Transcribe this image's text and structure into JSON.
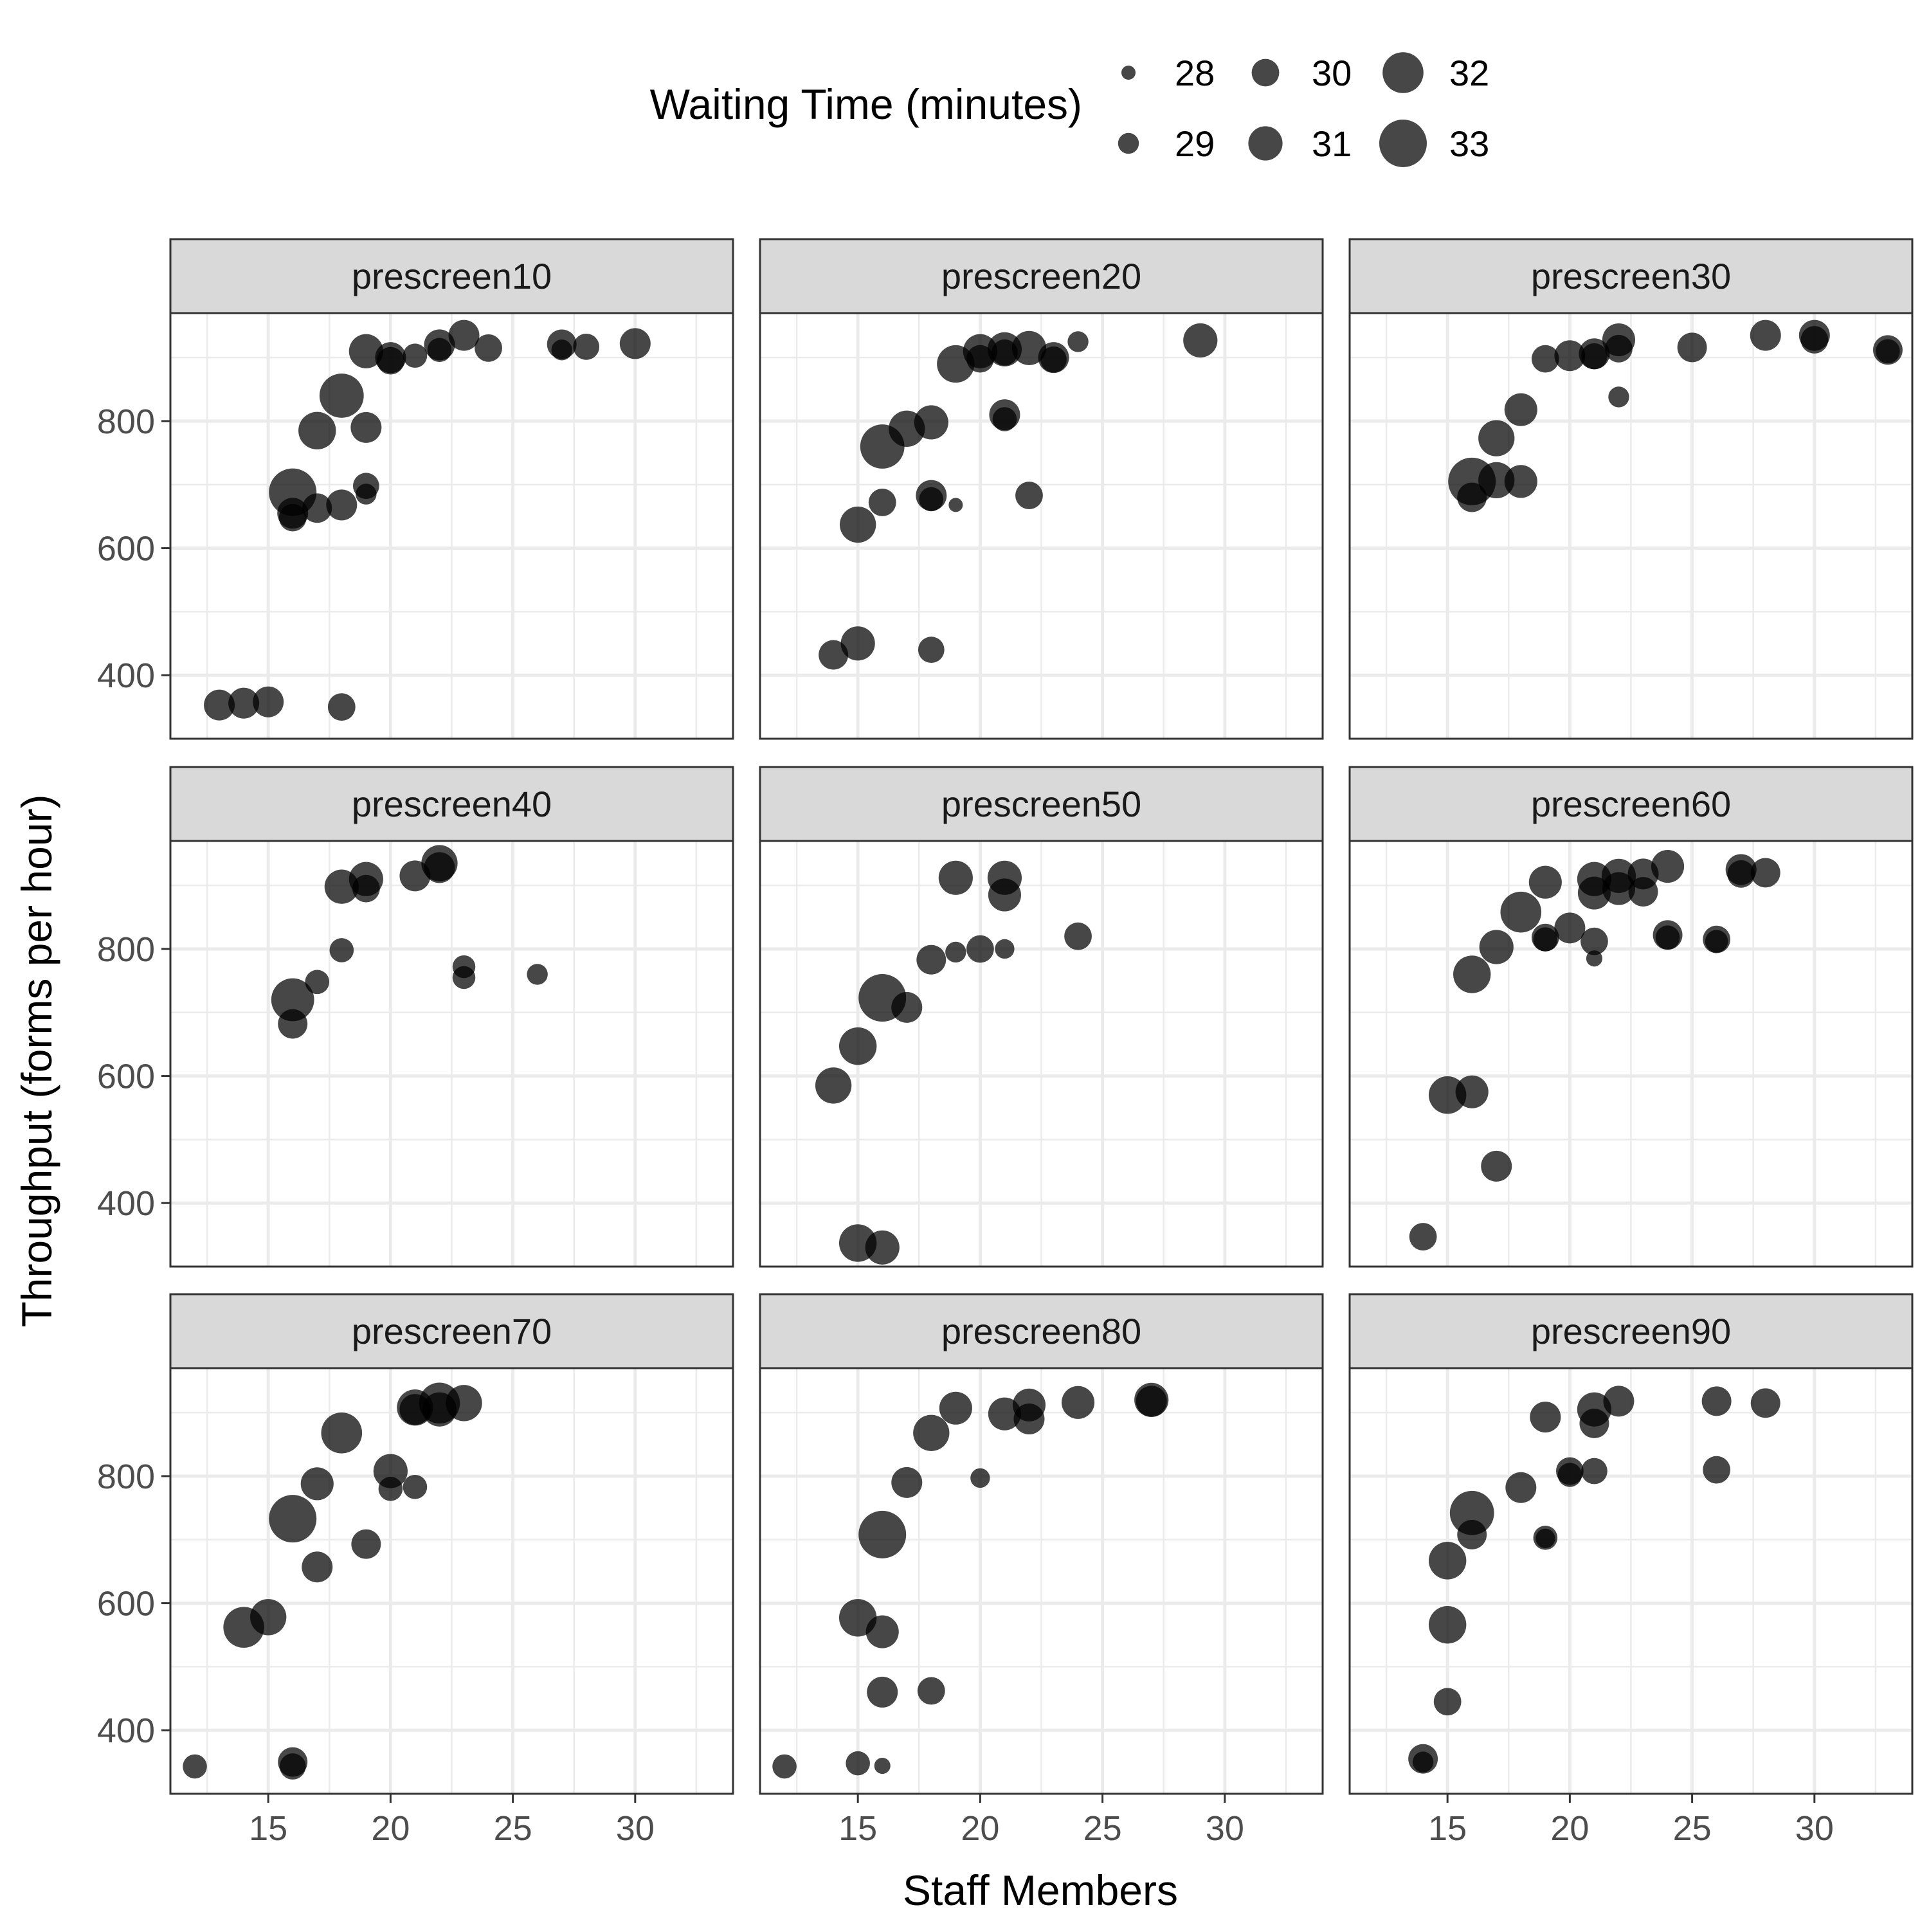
{
  "chart_data": {
    "type": "scatter",
    "x_label": "Staff Members",
    "y_label": "Throughput (forms per hour)",
    "xlim": [
      11,
      34
    ],
    "ylim": [
      300,
      970
    ],
    "x_ticks": [
      15,
      20,
      25,
      30
    ],
    "y_ticks": [
      400,
      600,
      800
    ],
    "grid": true,
    "size_legend": {
      "title": "Waiting Time (minutes)",
      "position": "top",
      "entries": [
        {
          "value": 28,
          "label": "28"
        },
        {
          "value": 29,
          "label": "29"
        },
        {
          "value": 30,
          "label": "30"
        },
        {
          "value": 31,
          "label": "31"
        },
        {
          "value": 32,
          "label": "32"
        },
        {
          "value": 33,
          "label": "33"
        }
      ]
    },
    "point_color": "#000000",
    "panel_strip_color": "#d9d9d9",
    "panels": [
      {
        "title": "prescreen10",
        "points": [
          {
            "x": 13,
            "y": 353,
            "w": 30.5
          },
          {
            "x": 14,
            "y": 356,
            "w": 30.5
          },
          {
            "x": 15,
            "y": 358,
            "w": 30.5
          },
          {
            "x": 18,
            "y": 350,
            "w": 30
          },
          {
            "x": 16,
            "y": 688,
            "w": 33
          },
          {
            "x": 16,
            "y": 655,
            "w": 30.5
          },
          {
            "x": 16,
            "y": 648,
            "w": 30
          },
          {
            "x": 17,
            "y": 663,
            "w": 30.3
          },
          {
            "x": 18,
            "y": 668,
            "w": 30.5
          },
          {
            "x": 17,
            "y": 785,
            "w": 31.5
          },
          {
            "x": 18,
            "y": 840,
            "w": 32.5
          },
          {
            "x": 19,
            "y": 790,
            "w": 30.5
          },
          {
            "x": 19,
            "y": 698,
            "w": 29.8
          },
          {
            "x": 19,
            "y": 685,
            "w": 29
          },
          {
            "x": 19,
            "y": 910,
            "w": 31
          },
          {
            "x": 20,
            "y": 900,
            "w": 30.5
          },
          {
            "x": 20,
            "y": 895,
            "w": 30
          },
          {
            "x": 21,
            "y": 903,
            "w": 29.5
          },
          {
            "x": 22,
            "y": 920,
            "w": 30.5
          },
          {
            "x": 22,
            "y": 912,
            "w": 29.5
          },
          {
            "x": 23,
            "y": 935,
            "w": 30.5
          },
          {
            "x": 24,
            "y": 915,
            "w": 30
          },
          {
            "x": 27,
            "y": 921,
            "w": 30.3
          },
          {
            "x": 27,
            "y": 912,
            "w": 29
          },
          {
            "x": 28,
            "y": 917,
            "w": 29.8
          },
          {
            "x": 30,
            "y": 922,
            "w": 30.5
          }
        ]
      },
      {
        "title": "prescreen20",
        "points": [
          {
            "x": 14,
            "y": 432,
            "w": 30.3
          },
          {
            "x": 15,
            "y": 450,
            "w": 31
          },
          {
            "x": 18,
            "y": 440,
            "w": 29.8
          },
          {
            "x": 15,
            "y": 637,
            "w": 31.3
          },
          {
            "x": 16,
            "y": 672,
            "w": 30
          },
          {
            "x": 16,
            "y": 760,
            "w": 32.5
          },
          {
            "x": 17,
            "y": 788,
            "w": 31.3
          },
          {
            "x": 18,
            "y": 798,
            "w": 31
          },
          {
            "x": 18,
            "y": 683,
            "w": 30.5
          },
          {
            "x": 18,
            "y": 677,
            "w": 29.5
          },
          {
            "x": 19,
            "y": 668,
            "w": 28
          },
          {
            "x": 19,
            "y": 890,
            "w": 31.5
          },
          {
            "x": 20,
            "y": 910,
            "w": 31
          },
          {
            "x": 20,
            "y": 898,
            "w": 30
          },
          {
            "x": 21,
            "y": 913,
            "w": 31
          },
          {
            "x": 21,
            "y": 908,
            "w": 29.8
          },
          {
            "x": 21,
            "y": 810,
            "w": 30.5
          },
          {
            "x": 21,
            "y": 803,
            "w": 29.5
          },
          {
            "x": 22,
            "y": 915,
            "w": 31
          },
          {
            "x": 22,
            "y": 683,
            "w": 30
          },
          {
            "x": 23,
            "y": 900,
            "w": 30.5
          },
          {
            "x": 23,
            "y": 897,
            "w": 29.8
          },
          {
            "x": 24,
            "y": 925,
            "w": 29
          },
          {
            "x": 29,
            "y": 927,
            "w": 31
          }
        ]
      },
      {
        "title": "prescreen30",
        "points": [
          {
            "x": 16,
            "y": 705,
            "w": 33
          },
          {
            "x": 16,
            "y": 680,
            "w": 30.3
          },
          {
            "x": 17,
            "y": 773,
            "w": 31.3
          },
          {
            "x": 17,
            "y": 707,
            "w": 31.3
          },
          {
            "x": 18,
            "y": 818,
            "w": 30.8
          },
          {
            "x": 18,
            "y": 705,
            "w": 30.8
          },
          {
            "x": 19,
            "y": 898,
            "w": 30
          },
          {
            "x": 20,
            "y": 903,
            "w": 30.5
          },
          {
            "x": 21,
            "y": 906,
            "w": 30.5
          },
          {
            "x": 21,
            "y": 902,
            "w": 29.8
          },
          {
            "x": 22,
            "y": 928,
            "w": 30.8
          },
          {
            "x": 22,
            "y": 914,
            "w": 30
          },
          {
            "x": 22,
            "y": 838,
            "w": 29
          },
          {
            "x": 25,
            "y": 916,
            "w": 30.3
          },
          {
            "x": 28,
            "y": 935,
            "w": 30.5
          },
          {
            "x": 30,
            "y": 935,
            "w": 30.5
          },
          {
            "x": 30,
            "y": 928,
            "w": 30
          },
          {
            "x": 33,
            "y": 912,
            "w": 30.3
          },
          {
            "x": 33,
            "y": 910,
            "w": 29.5
          }
        ]
      },
      {
        "title": "prescreen40",
        "points": [
          {
            "x": 16,
            "y": 720,
            "w": 32.3
          },
          {
            "x": 16,
            "y": 682,
            "w": 30.3
          },
          {
            "x": 17,
            "y": 748,
            "w": 29.5
          },
          {
            "x": 18,
            "y": 898,
            "w": 31
          },
          {
            "x": 18,
            "y": 798,
            "w": 29.5
          },
          {
            "x": 19,
            "y": 910,
            "w": 31
          },
          {
            "x": 19,
            "y": 895,
            "w": 30
          },
          {
            "x": 21,
            "y": 915,
            "w": 30.5
          },
          {
            "x": 22,
            "y": 935,
            "w": 31.3
          },
          {
            "x": 22,
            "y": 928,
            "w": 30.5
          },
          {
            "x": 23,
            "y": 772,
            "w": 29.3
          },
          {
            "x": 23,
            "y": 755,
            "w": 29.3
          },
          {
            "x": 26,
            "y": 760,
            "w": 29
          }
        ]
      },
      {
        "title": "prescreen50",
        "points": [
          {
            "x": 15,
            "y": 337,
            "w": 31.5
          },
          {
            "x": 16,
            "y": 330,
            "w": 31
          },
          {
            "x": 14,
            "y": 585,
            "w": 31.3
          },
          {
            "x": 15,
            "y": 647,
            "w": 31.5
          },
          {
            "x": 16,
            "y": 723,
            "w": 33
          },
          {
            "x": 17,
            "y": 708,
            "w": 30.5
          },
          {
            "x": 18,
            "y": 783,
            "w": 30.3
          },
          {
            "x": 19,
            "y": 795,
            "w": 29
          },
          {
            "x": 19,
            "y": 912,
            "w": 31
          },
          {
            "x": 20,
            "y": 800,
            "w": 30
          },
          {
            "x": 21,
            "y": 912,
            "w": 31
          },
          {
            "x": 21,
            "y": 885,
            "w": 30.8
          },
          {
            "x": 21,
            "y": 800,
            "w": 28.8
          },
          {
            "x": 24,
            "y": 820,
            "w": 30
          }
        ]
      },
      {
        "title": "prescreen60",
        "points": [
          {
            "x": 14,
            "y": 347,
            "w": 30
          },
          {
            "x": 15,
            "y": 570,
            "w": 31.5
          },
          {
            "x": 16,
            "y": 575,
            "w": 30.8
          },
          {
            "x": 16,
            "y": 760,
            "w": 31.5
          },
          {
            "x": 17,
            "y": 458,
            "w": 30.5
          },
          {
            "x": 17,
            "y": 803,
            "w": 31
          },
          {
            "x": 18,
            "y": 858,
            "w": 32
          },
          {
            "x": 19,
            "y": 905,
            "w": 30.8
          },
          {
            "x": 19,
            "y": 818,
            "w": 30
          },
          {
            "x": 19,
            "y": 815,
            "w": 29.5
          },
          {
            "x": 20,
            "y": 833,
            "w": 30.5
          },
          {
            "x": 21,
            "y": 910,
            "w": 31
          },
          {
            "x": 21,
            "y": 888,
            "w": 30.8
          },
          {
            "x": 21,
            "y": 812,
            "w": 30
          },
          {
            "x": 21,
            "y": 785,
            "w": 28.3
          },
          {
            "x": 22,
            "y": 915,
            "w": 31
          },
          {
            "x": 22,
            "y": 895,
            "w": 30.8
          },
          {
            "x": 23,
            "y": 918,
            "w": 30.5
          },
          {
            "x": 23,
            "y": 890,
            "w": 30.3
          },
          {
            "x": 24,
            "y": 930,
            "w": 30.8
          },
          {
            "x": 24,
            "y": 822,
            "w": 30.3
          },
          {
            "x": 24,
            "y": 818,
            "w": 29.5
          },
          {
            "x": 26,
            "y": 815,
            "w": 30
          },
          {
            "x": 26,
            "y": 812,
            "w": 29.3
          },
          {
            "x": 27,
            "y": 925,
            "w": 30.5
          },
          {
            "x": 27,
            "y": 918,
            "w": 30
          },
          {
            "x": 28,
            "y": 920,
            "w": 30.3
          }
        ]
      },
      {
        "title": "prescreen70",
        "points": [
          {
            "x": 12,
            "y": 343,
            "w": 29.5
          },
          {
            "x": 14,
            "y": 562,
            "w": 32
          },
          {
            "x": 15,
            "y": 578,
            "w": 31.3
          },
          {
            "x": 16,
            "y": 733,
            "w": 33
          },
          {
            "x": 16,
            "y": 350,
            "w": 30.3
          },
          {
            "x": 16,
            "y": 343,
            "w": 29.8
          },
          {
            "x": 17,
            "y": 788,
            "w": 30.8
          },
          {
            "x": 17,
            "y": 657,
            "w": 30.5
          },
          {
            "x": 18,
            "y": 868,
            "w": 32
          },
          {
            "x": 19,
            "y": 693,
            "w": 30.3
          },
          {
            "x": 20,
            "y": 808,
            "w": 31
          },
          {
            "x": 20,
            "y": 780,
            "w": 29.5
          },
          {
            "x": 21,
            "y": 908,
            "w": 31.3
          },
          {
            "x": 21,
            "y": 905,
            "w": 30.5
          },
          {
            "x": 21,
            "y": 783,
            "w": 29.5
          },
          {
            "x": 22,
            "y": 915,
            "w": 32
          },
          {
            "x": 22,
            "y": 905,
            "w": 31
          },
          {
            "x": 23,
            "y": 915,
            "w": 31.3
          }
        ]
      },
      {
        "title": "prescreen80",
        "points": [
          {
            "x": 12,
            "y": 343,
            "w": 29.5
          },
          {
            "x": 15,
            "y": 348,
            "w": 29.5
          },
          {
            "x": 16,
            "y": 344,
            "w": 28.3
          },
          {
            "x": 15,
            "y": 577,
            "w": 31.5
          },
          {
            "x": 16,
            "y": 555,
            "w": 30.8
          },
          {
            "x": 16,
            "y": 460,
            "w": 30.5
          },
          {
            "x": 16,
            "y": 708,
            "w": 33
          },
          {
            "x": 17,
            "y": 790,
            "w": 30.5
          },
          {
            "x": 18,
            "y": 868,
            "w": 31.3
          },
          {
            "x": 18,
            "y": 462,
            "w": 30
          },
          {
            "x": 19,
            "y": 907,
            "w": 30.8
          },
          {
            "x": 20,
            "y": 797,
            "w": 28.8
          },
          {
            "x": 21,
            "y": 898,
            "w": 30.8
          },
          {
            "x": 22,
            "y": 912,
            "w": 30.8
          },
          {
            "x": 22,
            "y": 890,
            "w": 30.5
          },
          {
            "x": 24,
            "y": 916,
            "w": 30.8
          },
          {
            "x": 27,
            "y": 920,
            "w": 31
          },
          {
            "x": 27,
            "y": 918,
            "w": 30.5
          }
        ]
      },
      {
        "title": "prescreen90",
        "points": [
          {
            "x": 14,
            "y": 355,
            "w": 30.3
          },
          {
            "x": 14,
            "y": 350,
            "w": 29
          },
          {
            "x": 15,
            "y": 445,
            "w": 30
          },
          {
            "x": 15,
            "y": 566,
            "w": 31.5
          },
          {
            "x": 15,
            "y": 667,
            "w": 31.5
          },
          {
            "x": 16,
            "y": 742,
            "w": 32.5
          },
          {
            "x": 16,
            "y": 708,
            "w": 30.3
          },
          {
            "x": 18,
            "y": 782,
            "w": 30.5
          },
          {
            "x": 19,
            "y": 893,
            "w": 30.5
          },
          {
            "x": 19,
            "y": 703,
            "w": 29.5
          },
          {
            "x": 19,
            "y": 702,
            "w": 28.8
          },
          {
            "x": 20,
            "y": 808,
            "w": 30
          },
          {
            "x": 20,
            "y": 802,
            "w": 29.5
          },
          {
            "x": 21,
            "y": 905,
            "w": 31
          },
          {
            "x": 21,
            "y": 883,
            "w": 30.3
          },
          {
            "x": 21,
            "y": 808,
            "w": 29.8
          },
          {
            "x": 22,
            "y": 918,
            "w": 30.5
          },
          {
            "x": 26,
            "y": 918,
            "w": 30.3
          },
          {
            "x": 26,
            "y": 810,
            "w": 30
          },
          {
            "x": 28,
            "y": 915,
            "w": 30.3
          }
        ]
      }
    ]
  }
}
